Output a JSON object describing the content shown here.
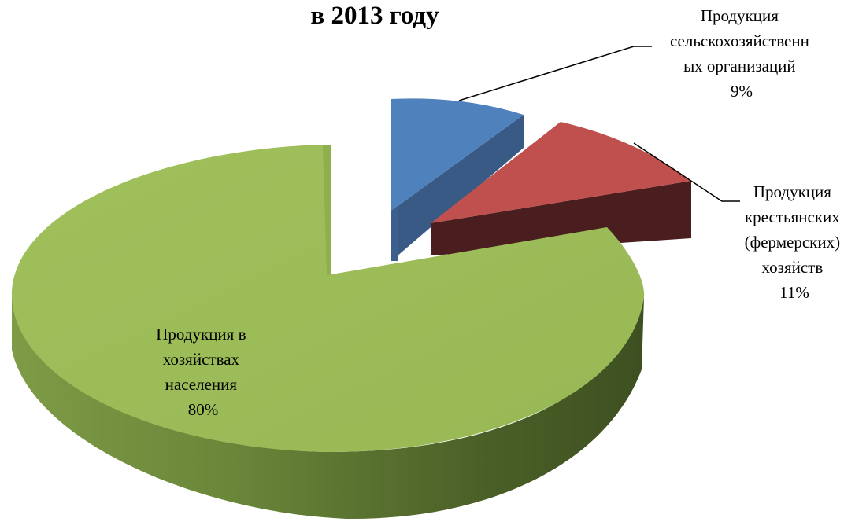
{
  "chart_data": {
    "type": "pie",
    "title": "в 2013 году",
    "slices": [
      {
        "name": "Продукция сельскохозяйственных организаций",
        "value": 9,
        "label_lines": [
          "Продукция",
          "сельскохозяйственн",
          "ых организаций",
          "9%"
        ],
        "color": "#4F81BD"
      },
      {
        "name": "Продукция крестьянских (фермерских) хозяйств",
        "value": 11,
        "label_lines": [
          "Продукция",
          "крестьянских",
          "(фермерских)",
          "хозяйств",
          "11%"
        ],
        "color": "#C0504D"
      },
      {
        "name": "Продукция в хозяйствах населения",
        "value": 80,
        "label_lines": [
          "Продукция в",
          "хозяйствах",
          "населения",
          "80%"
        ],
        "color": "#9BBB59"
      }
    ],
    "legend": "none",
    "style": "3d-exploded-pie"
  }
}
